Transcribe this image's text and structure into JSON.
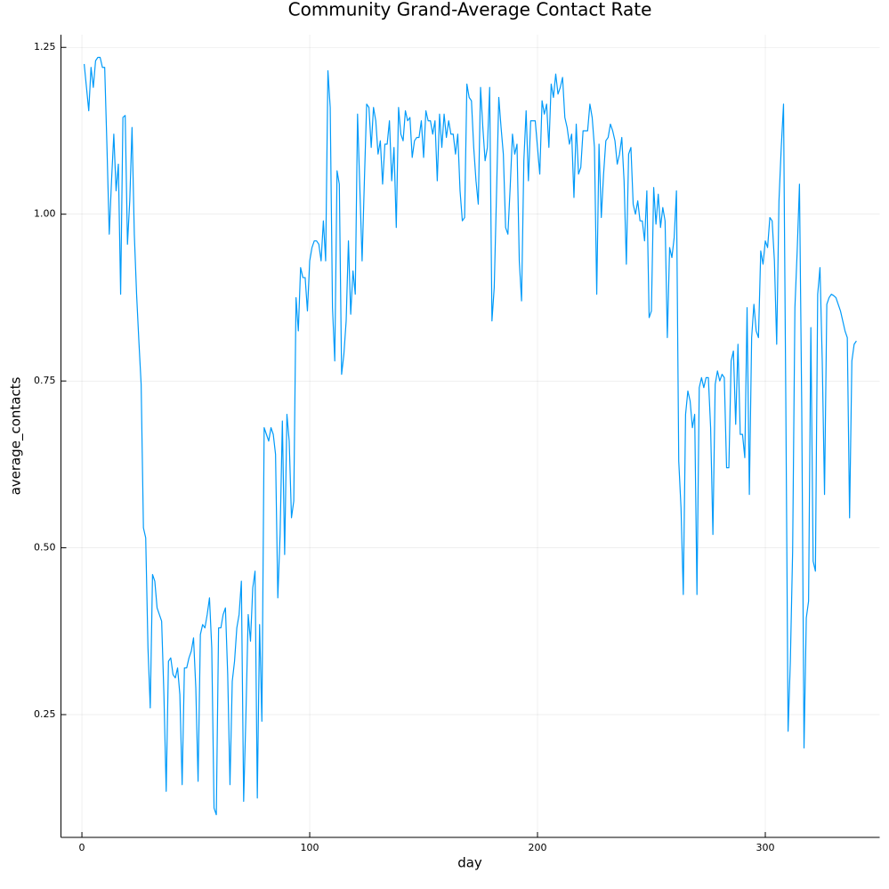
{
  "chart_data": {
    "type": "line",
    "title": "Community Grand-Average Contact Rate",
    "x_label": "day",
    "y_label": "average_contacts",
    "series": [
      {
        "name": "y1",
        "color": "#009af9",
        "x": [
          1,
          2,
          3,
          4,
          5,
          6,
          7,
          8,
          9,
          10,
          11,
          12,
          13,
          14,
          15,
          16,
          17,
          18,
          19,
          20,
          21,
          22,
          23,
          24,
          25,
          26,
          27,
          28,
          29,
          30,
          31,
          32,
          33,
          34,
          35,
          36,
          37,
          38,
          39,
          40,
          41,
          42,
          43,
          44,
          45,
          46,
          47,
          48,
          49,
          50,
          51,
          52,
          53,
          54,
          55,
          56,
          57,
          58,
          59,
          60,
          61,
          62,
          63,
          64,
          65,
          66,
          67,
          68,
          69,
          70,
          71,
          72,
          73,
          74,
          75,
          76,
          77,
          78,
          79,
          80,
          81,
          82,
          83,
          84,
          85,
          86,
          87,
          88,
          89,
          90,
          91,
          92,
          93,
          94,
          95,
          96,
          97,
          98,
          99,
          100,
          101,
          102,
          103,
          104,
          105,
          106,
          107,
          108,
          109,
          110,
          111,
          112,
          113,
          114,
          115,
          116,
          117,
          118,
          119,
          120,
          121,
          122,
          123,
          124,
          125,
          126,
          127,
          128,
          129,
          130,
          131,
          132,
          133,
          134,
          135,
          136,
          137,
          138,
          139,
          140,
          141,
          142,
          143,
          144,
          145,
          146,
          147,
          148,
          149,
          150,
          151,
          152,
          153,
          154,
          155,
          156,
          157,
          158,
          159,
          160,
          161,
          162,
          163,
          164,
          165,
          166,
          167,
          168,
          169,
          170,
          171,
          172,
          173,
          174,
          175,
          176,
          177,
          178,
          179,
          180,
          181,
          182,
          183,
          184,
          185,
          186,
          187,
          188,
          189,
          190,
          191,
          192,
          193,
          194,
          195,
          196,
          197,
          198,
          199,
          200,
          201,
          202,
          203,
          204,
          205,
          206,
          207,
          208,
          209,
          210,
          211,
          212,
          213,
          214,
          215,
          216,
          217,
          218,
          219,
          220,
          221,
          222,
          223,
          224,
          225,
          226,
          227,
          228,
          229,
          230,
          231,
          232,
          233,
          234,
          235,
          236,
          237,
          238,
          239,
          240,
          241,
          242,
          243,
          244,
          245,
          246,
          247,
          248,
          249,
          250,
          251,
          252,
          253,
          254,
          255,
          256,
          257,
          258,
          259,
          260,
          261,
          262,
          263,
          264,
          265,
          266,
          267,
          268,
          269,
          270,
          271,
          272,
          273,
          274,
          275,
          276,
          277,
          278,
          279,
          280,
          281,
          282,
          283,
          284,
          285,
          286,
          287,
          288,
          289,
          290,
          291,
          292,
          293,
          294,
          295,
          296,
          297,
          298,
          299,
          300,
          301,
          302,
          303,
          304,
          305,
          306,
          307,
          308,
          309,
          310,
          311,
          312,
          313,
          314,
          315,
          316,
          317,
          318,
          319,
          320,
          321,
          322,
          323,
          324,
          325,
          326,
          327,
          328,
          329,
          330,
          331,
          332,
          333,
          334,
          335,
          336,
          337,
          338,
          339,
          340
        ],
        "values": [
          1.225,
          1.19,
          1.155,
          1.22,
          1.19,
          1.23,
          1.235,
          1.235,
          1.22,
          1.22,
          1.1,
          0.97,
          1.05,
          1.12,
          1.035,
          1.075,
          0.88,
          1.145,
          1.148,
          0.955,
          1.02,
          1.13,
          0.97,
          0.88,
          0.81,
          0.745,
          0.53,
          0.515,
          0.35,
          0.26,
          0.46,
          0.45,
          0.41,
          0.4,
          0.39,
          0.28,
          0.135,
          0.33,
          0.335,
          0.31,
          0.305,
          0.32,
          0.28,
          0.145,
          0.32,
          0.32,
          0.335,
          0.345,
          0.365,
          0.29,
          0.15,
          0.37,
          0.385,
          0.38,
          0.4,
          0.425,
          0.35,
          0.11,
          0.1,
          0.38,
          0.38,
          0.4,
          0.41,
          0.31,
          0.145,
          0.3,
          0.33,
          0.38,
          0.4,
          0.45,
          0.12,
          0.25,
          0.4,
          0.36,
          0.44,
          0.465,
          0.125,
          0.385,
          0.24,
          0.68,
          0.67,
          0.66,
          0.68,
          0.67,
          0.64,
          0.425,
          0.52,
          0.69,
          0.49,
          0.7,
          0.66,
          0.545,
          0.57,
          0.875,
          0.825,
          0.92,
          0.905,
          0.905,
          0.855,
          0.93,
          0.95,
          0.96,
          0.96,
          0.955,
          0.93,
          0.99,
          0.93,
          1.215,
          1.16,
          0.86,
          0.78,
          1.065,
          1.045,
          0.76,
          0.79,
          0.84,
          0.96,
          0.85,
          0.915,
          0.88,
          1.15,
          1.04,
          0.93,
          1.05,
          1.165,
          1.16,
          1.1,
          1.16,
          1.14,
          1.09,
          1.11,
          1.045,
          1.105,
          1.105,
          1.14,
          1.05,
          1.1,
          0.98,
          1.16,
          1.12,
          1.11,
          1.155,
          1.14,
          1.145,
          1.085,
          1.11,
          1.115,
          1.115,
          1.14,
          1.085,
          1.155,
          1.14,
          1.14,
          1.12,
          1.14,
          1.05,
          1.15,
          1.1,
          1.15,
          1.115,
          1.14,
          1.12,
          1.12,
          1.09,
          1.12,
          1.035,
          0.99,
          0.995,
          1.195,
          1.175,
          1.17,
          1.1,
          1.05,
          1.015,
          1.19,
          1.13,
          1.08,
          1.1,
          1.19,
          0.84,
          0.89,
          1.03,
          1.175,
          1.13,
          1.09,
          0.98,
          0.97,
          1.04,
          1.12,
          1.09,
          1.105,
          0.93,
          0.87,
          1.08,
          1.155,
          1.05,
          1.14,
          1.14,
          1.14,
          1.1,
          1.06,
          1.17,
          1.15,
          1.165,
          1.1,
          1.195,
          1.175,
          1.21,
          1.18,
          1.19,
          1.205,
          1.145,
          1.13,
          1.105,
          1.12,
          1.025,
          1.135,
          1.06,
          1.07,
          1.125,
          1.125,
          1.125,
          1.165,
          1.145,
          1.1,
          0.88,
          1.105,
          0.995,
          1.06,
          1.11,
          1.115,
          1.135,
          1.125,
          1.11,
          1.075,
          1.09,
          1.115,
          1.05,
          0.925,
          1.09,
          1.1,
          1.015,
          1.0,
          1.02,
          0.99,
          0.99,
          0.96,
          1.035,
          0.845,
          0.855,
          1.04,
          0.985,
          1.03,
          0.98,
          1.01,
          0.99,
          0.815,
          0.95,
          0.935,
          0.965,
          1.035,
          0.63,
          0.56,
          0.43,
          0.7,
          0.735,
          0.72,
          0.68,
          0.7,
          0.43,
          0.74,
          0.755,
          0.74,
          0.755,
          0.755,
          0.68,
          0.52,
          0.745,
          0.765,
          0.75,
          0.76,
          0.755,
          0.62,
          0.62,
          0.78,
          0.795,
          0.685,
          0.805,
          0.67,
          0.67,
          0.635,
          0.86,
          0.58,
          0.815,
          0.865,
          0.825,
          0.815,
          0.945,
          0.925,
          0.96,
          0.95,
          0.995,
          0.99,
          0.93,
          0.805,
          1.02,
          1.1,
          1.165,
          0.72,
          0.225,
          0.33,
          0.495,
          0.86,
          0.945,
          1.045,
          0.71,
          0.2,
          0.395,
          0.42,
          0.83,
          0.48,
          0.465,
          0.88,
          0.92,
          0.78,
          0.58,
          0.865,
          0.875,
          0.88,
          0.878,
          0.875,
          0.865,
          0.855,
          0.84,
          0.825,
          0.815,
          0.545,
          0.78,
          0.805,
          0.81
        ]
      }
    ],
    "xlim": [
      -9.2,
      350.2
    ],
    "xticks": [
      0,
      100,
      200,
      300
    ],
    "ylim": [
      0.066,
      1.269
    ],
    "yticks": [
      {
        "value": 0.25,
        "label": "0.25"
      },
      {
        "value": 0.5,
        "label": "0.50"
      },
      {
        "value": 0.75,
        "label": "0.75"
      },
      {
        "value": 1,
        "label": "1.00"
      },
      {
        "value": 1.25,
        "label": "1.25"
      }
    ],
    "grid": true
  }
}
